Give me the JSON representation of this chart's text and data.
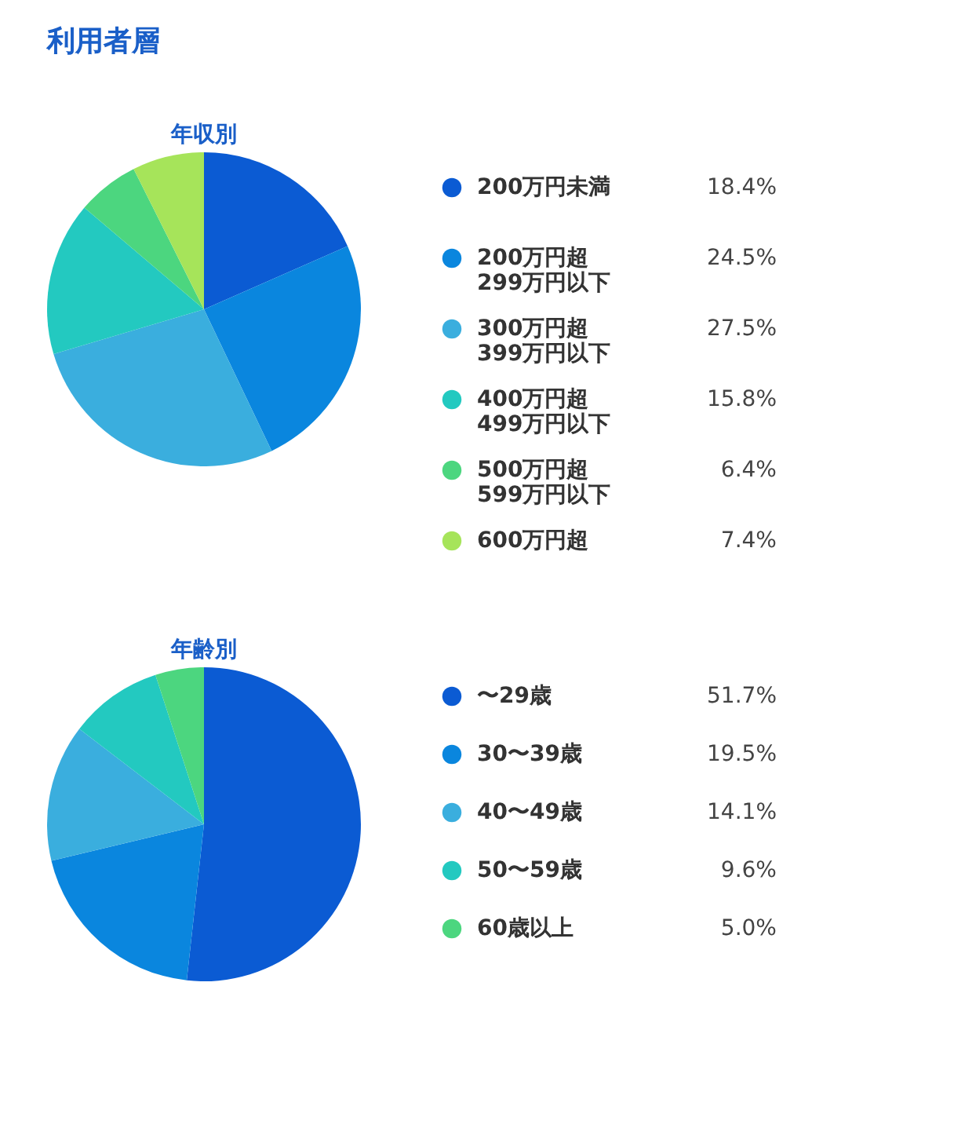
{
  "chart_data": [
    {
      "type": "pie",
      "title": "年収別",
      "annotations": [
        "利用者層"
      ],
      "legend": "right",
      "categories": [
        "200万円未満",
        "200万円超\n299万円以下",
        "300万円超\n399万円以下",
        "400万円超\n499万円以下",
        "500万円超\n599万円以下",
        "600万円超"
      ],
      "values": [
        18.4,
        24.5,
        27.5,
        15.8,
        6.4,
        7.4
      ],
      "value_labels": [
        "18.4%",
        "24.5%",
        "27.5%",
        "15.8%",
        "6.4%",
        "7.4%"
      ],
      "colors": [
        "#0b5bd3",
        "#0a86de",
        "#3aaede",
        "#23c9c0",
        "#4cd67f",
        "#a6e45a"
      ]
    },
    {
      "type": "pie",
      "title": "年齢別",
      "legend": "right",
      "categories": [
        "〜29歳",
        "30〜39歳",
        "40〜49歳",
        "50〜59歳",
        "60歳以上"
      ],
      "values": [
        51.7,
        19.5,
        14.1,
        9.6,
        5.0
      ],
      "value_labels": [
        "51.7%",
        "19.5%",
        "14.1%",
        "9.6%",
        "5.0%"
      ],
      "colors": [
        "#0b5bd3",
        "#0a86de",
        "#3aaede",
        "#23c9c0",
        "#4cd67f"
      ]
    }
  ]
}
